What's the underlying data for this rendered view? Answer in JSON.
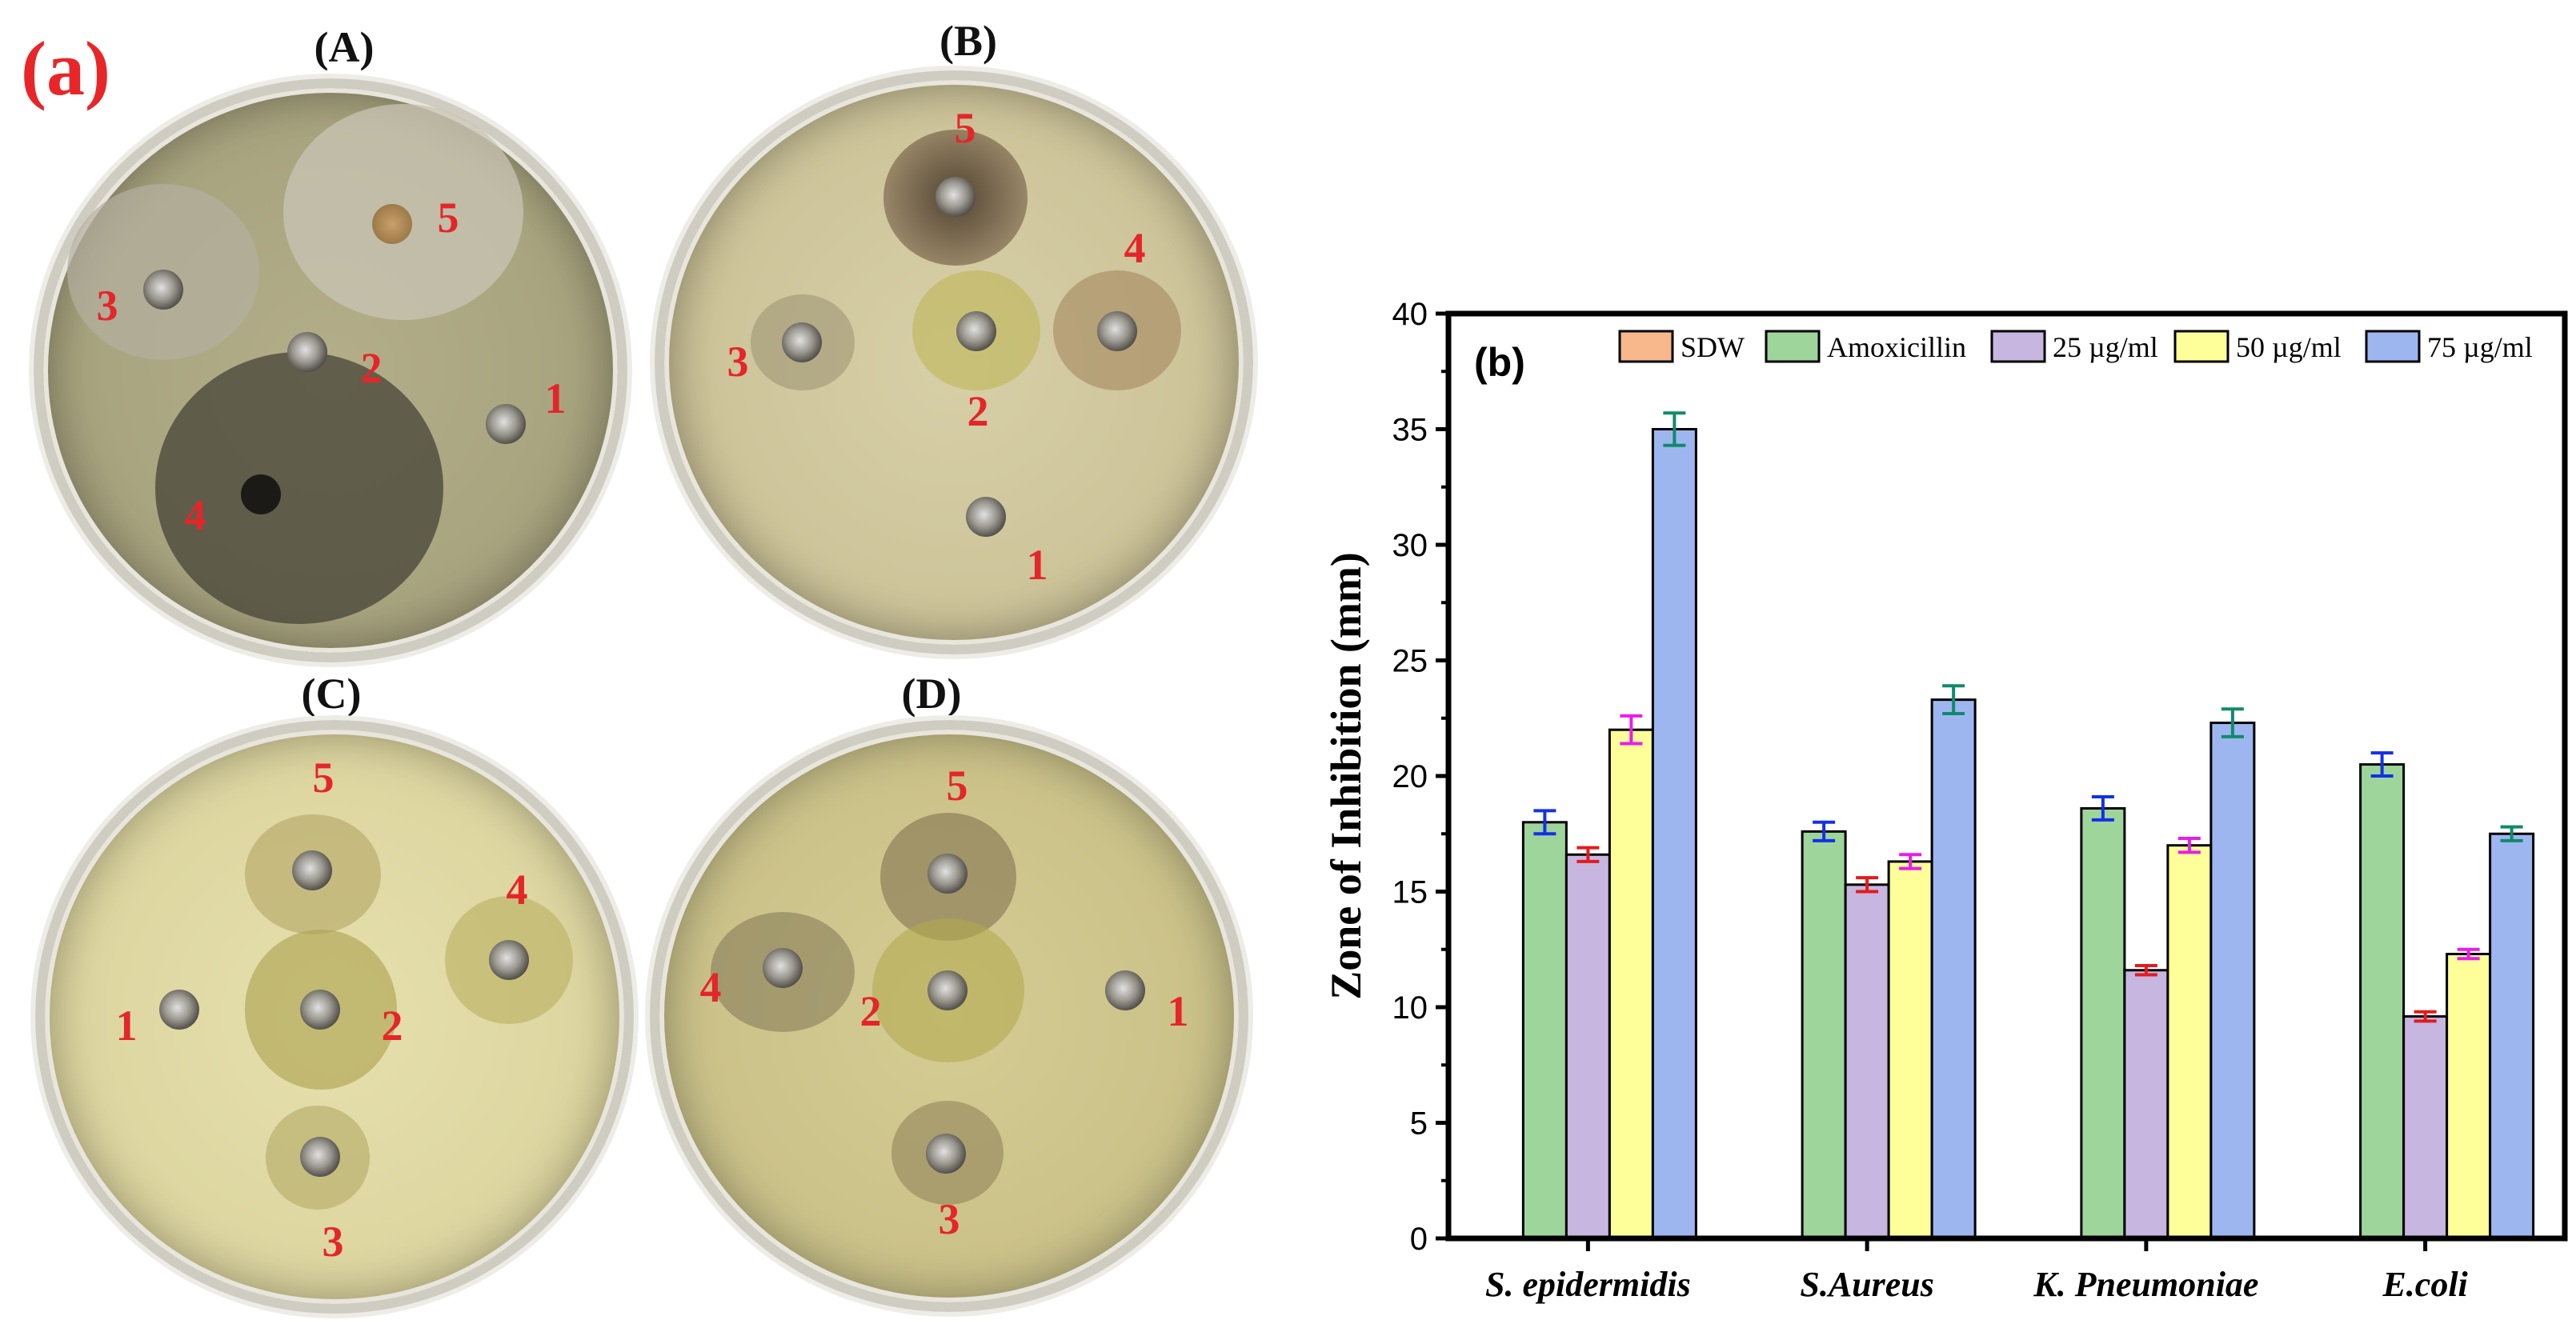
{
  "panel_label": "(a)",
  "plates": [
    {
      "title": "(A)",
      "numbers": [
        "5",
        "3",
        "2",
        "1",
        "4"
      ]
    },
    {
      "title": "(B)",
      "numbers": [
        "5",
        "4",
        "3",
        "2",
        "1"
      ]
    },
    {
      "title": "(C)",
      "numbers": [
        "5",
        "4",
        "1",
        "2",
        "3"
      ]
    },
    {
      "title": "(D)",
      "numbers": [
        "5",
        "4",
        "2",
        "1",
        "3"
      ]
    }
  ],
  "chart_data": {
    "type": "bar",
    "panel_label": "(b)",
    "title": "",
    "xlabel": "",
    "ylabel": "Zone of Inhibition (mm)",
    "ylim": [
      0,
      40
    ],
    "yticks": [
      "0",
      "5",
      "10",
      "15",
      "20",
      "25",
      "30",
      "35",
      "40"
    ],
    "categories": [
      "S. epidermidis",
      "S.Aureus",
      "K. Pneumoniae",
      "E.coli"
    ],
    "legend_position": "top",
    "series": [
      {
        "name": "SDW",
        "color": "#f8b88b",
        "values": [
          0,
          0,
          0,
          0
        ],
        "errors": [
          0,
          0,
          0,
          0
        ],
        "error_color": "#000000"
      },
      {
        "name": "Amoxicillin",
        "color": "#9ed59b",
        "values": [
          18.0,
          17.6,
          18.6,
          20.5
        ],
        "errors": [
          0.5,
          0.4,
          0.5,
          0.5
        ],
        "error_color": "#1430e8"
      },
      {
        "name": "25 µg/ml",
        "color": "#c7b6e0",
        "values": [
          16.6,
          15.3,
          11.6,
          9.6
        ],
        "errors": [
          0.3,
          0.3,
          0.2,
          0.2
        ],
        "error_color": "#e41a1c"
      },
      {
        "name": "50 µg/ml",
        "color": "#feff99",
        "values": [
          22.0,
          16.3,
          17.0,
          12.3
        ],
        "errors": [
          0.6,
          0.3,
          0.3,
          0.2
        ],
        "error_color": "#e81ee8"
      },
      {
        "name": "75 µg/ml",
        "color": "#9eb6f0",
        "values": [
          35.0,
          23.3,
          22.3,
          17.5
        ],
        "errors": [
          0.7,
          0.6,
          0.6,
          0.3
        ],
        "error_color": "#118a6c"
      }
    ]
  }
}
